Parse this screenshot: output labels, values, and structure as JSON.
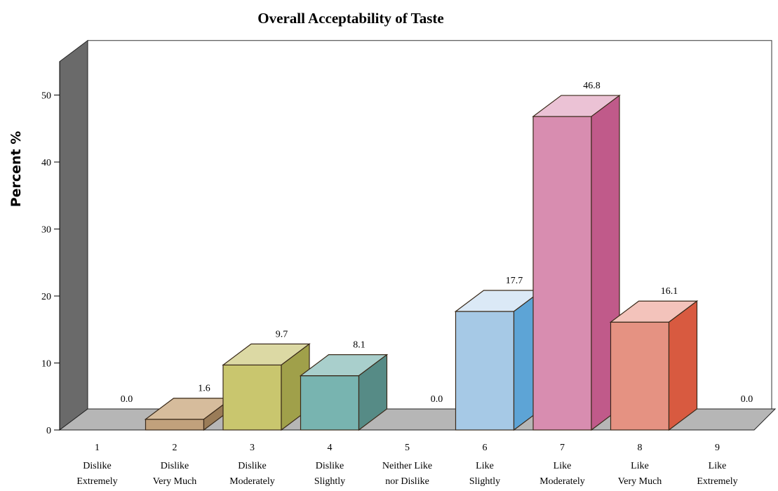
{
  "chart_data": {
    "type": "bar",
    "title": "Overall Acceptability of Taste",
    "ylabel": "Percent %",
    "xlabel": "",
    "ylim": [
      0,
      55
    ],
    "yticks": [
      0,
      10,
      20,
      30,
      40,
      50
    ],
    "categories": [
      {
        "num": "1",
        "line1": "Dislike",
        "line2": "Extremely"
      },
      {
        "num": "2",
        "line1": "Dislike",
        "line2": "Very Much"
      },
      {
        "num": "3",
        "line1": "Dislike",
        "line2": "Moderately"
      },
      {
        "num": "4",
        "line1": "Dislike",
        "line2": "Slightly"
      },
      {
        "num": "5",
        "line1": "Neither Like",
        "line2": "nor Dislike"
      },
      {
        "num": "6",
        "line1": "Like",
        "line2": "Slightly"
      },
      {
        "num": "7",
        "line1": "Like",
        "line2": "Moderately"
      },
      {
        "num": "8",
        "line1": "Like",
        "line2": "Very Much"
      },
      {
        "num": "9",
        "line1": "Like",
        "line2": "Extremely"
      }
    ],
    "values": [
      0.0,
      1.6,
      9.7,
      8.1,
      0.0,
      17.7,
      46.8,
      16.1,
      0.0
    ],
    "value_labels": [
      "0.0",
      "1.6",
      "9.7",
      "8.1",
      "0.0",
      "17.7",
      "46.8",
      "16.1",
      "0.0"
    ],
    "colors": [
      {
        "front": "#999999",
        "top": "#b8b8b8",
        "side": "#7a7a7a"
      },
      {
        "front": "#c1a17c",
        "top": "#d6bc9c",
        "side": "#9a7c58"
      },
      {
        "front": "#c9c66e",
        "top": "#dcd9a4",
        "side": "#a0a04a"
      },
      {
        "front": "#78b4b0",
        "top": "#a9cfcc",
        "side": "#568b86"
      },
      {
        "front": "#999999",
        "top": "#b8b8b8",
        "side": "#7a7a7a"
      },
      {
        "front": "#a6c9e6",
        "top": "#dbe9f6",
        "side": "#5da4d6"
      },
      {
        "front": "#d88db0",
        "top": "#ebc2d5",
        "side": "#c05a8a"
      },
      {
        "front": "#e59282",
        "top": "#f3c3bb",
        "side": "#d85a40"
      },
      {
        "front": "#999999",
        "top": "#b8b8b8",
        "side": "#7a7a7a"
      }
    ],
    "wall_color": "#6a6a6a",
    "floor_color": "#b6b6b6",
    "grid": false,
    "legend": "none"
  }
}
